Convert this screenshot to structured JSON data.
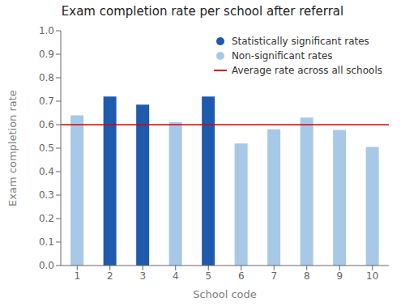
{
  "chart_data": {
    "type": "bar",
    "title": "Exam completion rate per school after referral",
    "xlabel": "School code",
    "ylabel": "Exam completion rate",
    "categories": [
      "1",
      "2",
      "3",
      "4",
      "5",
      "6",
      "7",
      "8",
      "9",
      "10"
    ],
    "series": [
      {
        "name": "Statistically significant rates",
        "type": "bar",
        "color": "#1f5aad",
        "marker": "circle",
        "values": [
          null,
          0.72,
          0.685,
          null,
          0.72,
          null,
          null,
          null,
          null,
          null
        ]
      },
      {
        "name": "Non-significant rates",
        "type": "bar",
        "color": "#a8c8e8",
        "marker": "circle",
        "values": [
          0.64,
          null,
          null,
          0.61,
          null,
          0.52,
          0.58,
          0.63,
          0.578,
          0.505
        ]
      },
      {
        "name": "Average rate across all schools",
        "type": "hline",
        "color": "#dd0000",
        "value": 0.6
      }
    ],
    "ylim": [
      0.0,
      1.0
    ],
    "yticks": [
      {
        "value": 0,
        "label": "0.0"
      },
      0.1,
      0.2,
      0.3,
      0.4,
      0.5,
      0.6,
      0.7,
      0.8,
      0.9,
      {
        "value": 1,
        "label": "1.0"
      }
    ],
    "grid": false,
    "legend": "upper right"
  }
}
